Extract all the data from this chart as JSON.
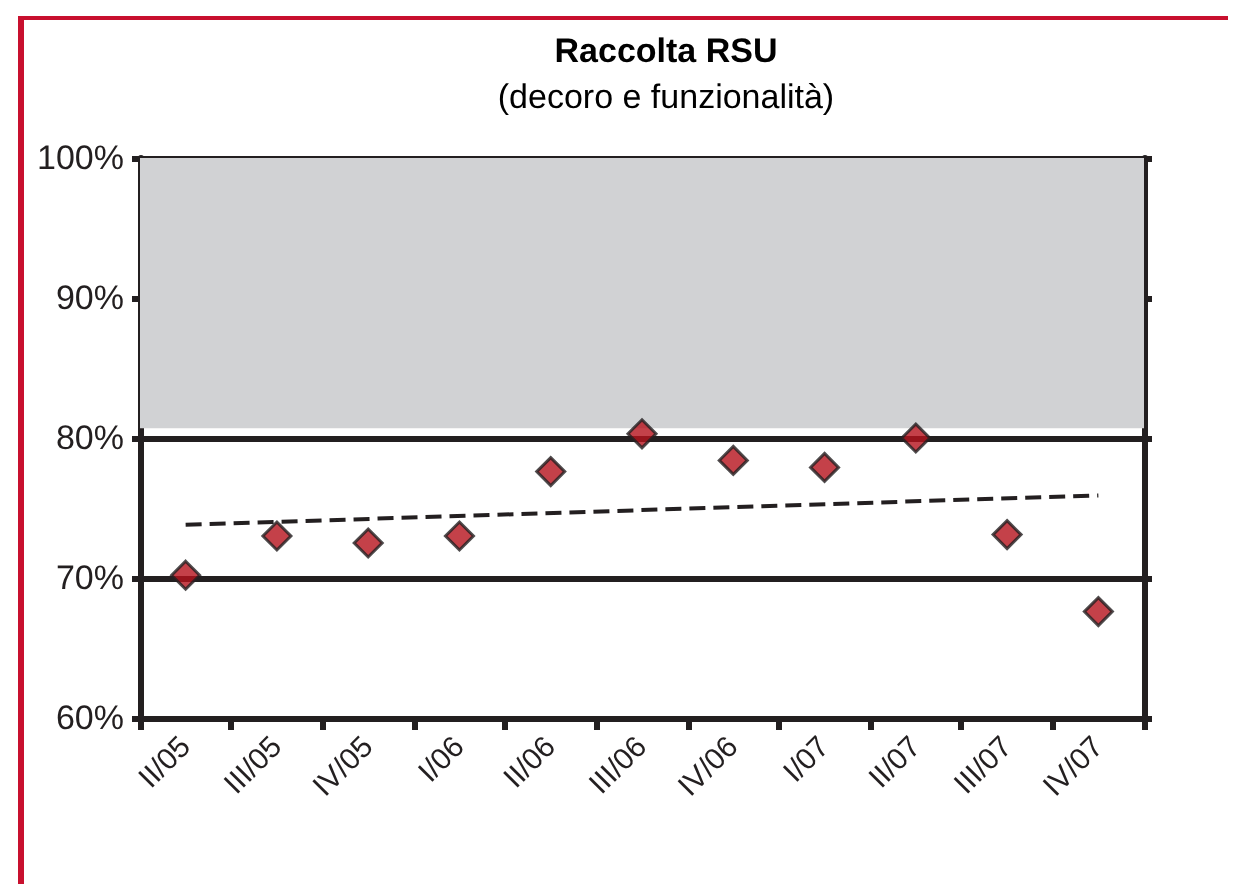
{
  "chart_data": {
    "type": "scatter",
    "title": "Raccolta RSU",
    "subtitle": "(decoro e funzionalità)",
    "categories": [
      "II/05",
      "III/05",
      "IV/05",
      "I/06",
      "II/06",
      "III/06",
      "IV/06",
      "I/07",
      "II/07",
      "III/07",
      "IV/07"
    ],
    "series": [
      {
        "color": "#b5121b",
        "values": [
          70.2,
          73.0,
          72.5,
          73.0,
          77.6,
          80.3,
          78.4,
          77.9,
          80.0,
          73.1,
          67.6
        ]
      },
      {
        "type": "line",
        "color": "#231f20",
        "x": [
          "II/05",
          "IV/07"
        ],
        "values": [
          73.8,
          75.9
        ],
        "line_style": "dashed",
        "marker": "none"
      }
    ],
    "ylim": [
      60,
      100
    ],
    "yticks": [
      {
        "value": 60,
        "label": "60%"
      },
      {
        "value": 70,
        "label": "70%"
      },
      {
        "value": 80,
        "label": "80%"
      },
      {
        "value": 90,
        "label": "90%"
      },
      {
        "value": 100,
        "label": "100%"
      }
    ],
    "bands": [
      {
        "axis": "y",
        "from": 80.7,
        "to": 100,
        "color": "#d1d2d4"
      }
    ],
    "grid": "y",
    "marker": "diamond"
  }
}
